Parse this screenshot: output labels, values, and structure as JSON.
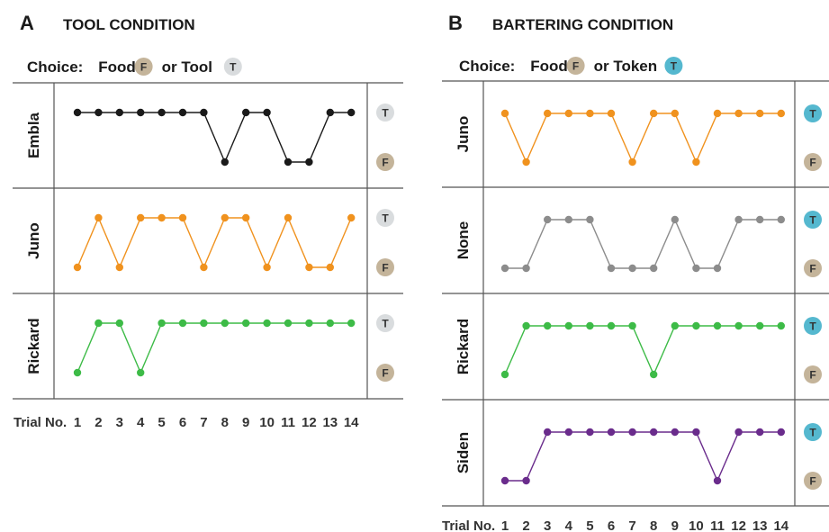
{
  "chart_data": [
    {
      "type": "line",
      "panel": "A",
      "title": "TOOL CONDITION",
      "choice": {
        "prefix": "Choice:",
        "a_text": "Food",
        "a_badge": "F",
        "b_text": "or Tool",
        "b_badge": "T"
      },
      "x_label": "Trial No.",
      "x": [
        1,
        2,
        3,
        4,
        5,
        6,
        7,
        8,
        9,
        10,
        11,
        12,
        13,
        14
      ],
      "y_levels": [
        "F",
        "T"
      ],
      "series": [
        {
          "name": "Embla",
          "color": "#1a1a1a",
          "values": [
            "T",
            "T",
            "T",
            "T",
            "T",
            "T",
            "T",
            "F",
            "T",
            "T",
            "F",
            "F",
            "T",
            "T"
          ]
        },
        {
          "name": "Juno",
          "color": "#f0921e",
          "values": [
            "F",
            "T",
            "F",
            "T",
            "T",
            "T",
            "F",
            "T",
            "T",
            "F",
            "T",
            "F",
            "F",
            "T"
          ]
        },
        {
          "name": "Rickard",
          "color": "#3dbb47",
          "values": [
            "F",
            "T",
            "T",
            "F",
            "T",
            "T",
            "T",
            "T",
            "T",
            "T",
            "T",
            "T",
            "T",
            "T"
          ]
        }
      ],
      "badge_colors": {
        "F": "#c4b49a",
        "T": "#d9dcde"
      }
    },
    {
      "type": "line",
      "panel": "B",
      "title": "BARTERING CONDITION",
      "choice": {
        "prefix": "Choice:",
        "a_text": "Food",
        "a_badge": "F",
        "b_text": "or Token",
        "b_badge": "T"
      },
      "x_label": "Trial No.",
      "x": [
        1,
        2,
        3,
        4,
        5,
        6,
        7,
        8,
        9,
        10,
        11,
        12,
        13,
        14
      ],
      "y_levels": [
        "F",
        "T"
      ],
      "series": [
        {
          "name": "Juno",
          "color": "#f0921e",
          "values": [
            "T",
            "F",
            "T",
            "T",
            "T",
            "T",
            "F",
            "T",
            "T",
            "F",
            "T",
            "T",
            "T",
            "T"
          ]
        },
        {
          "name": "None",
          "color": "#8c8c8c",
          "values": [
            "F",
            "F",
            "T",
            "T",
            "T",
            "F",
            "F",
            "F",
            "T",
            "F",
            "F",
            "T",
            "T",
            "T"
          ]
        },
        {
          "name": "Rickard",
          "color": "#3dbb47",
          "values": [
            "F",
            "T",
            "T",
            "T",
            "T",
            "T",
            "T",
            "F",
            "T",
            "T",
            "T",
            "T",
            "T",
            "T"
          ]
        },
        {
          "name": "Siden",
          "color": "#6a2c8c",
          "values": [
            "F",
            "F",
            "T",
            "T",
            "T",
            "T",
            "T",
            "T",
            "T",
            "T",
            "F",
            "T",
            "T",
            "T"
          ]
        }
      ],
      "badge_colors": {
        "F": "#c4b49a",
        "T": "#55b8cf"
      }
    }
  ]
}
